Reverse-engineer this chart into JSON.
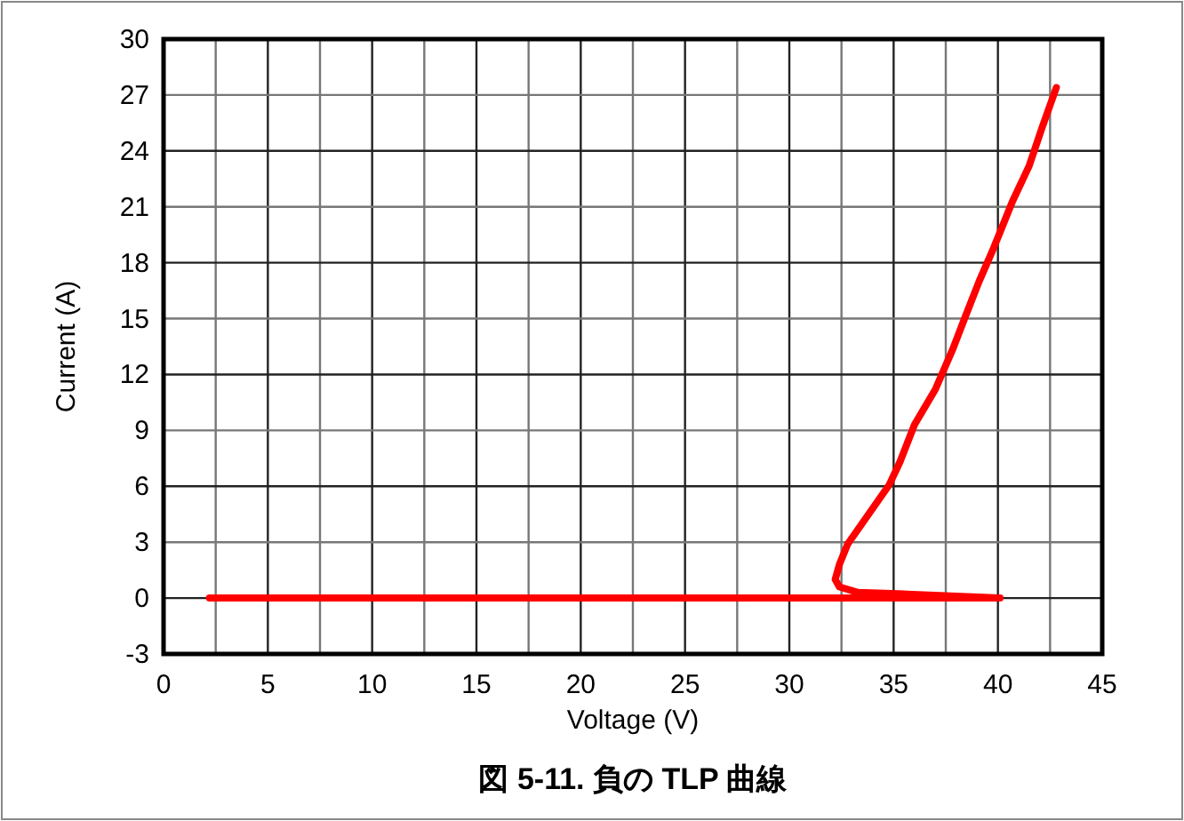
{
  "chart_data": {
    "type": "line",
    "title": "図 5-11. 負の TLP 曲線",
    "xlabel": "Voltage (V)",
    "ylabel": "Current (A)",
    "series": [
      {
        "color": "#ff0000",
        "x": [
          2.2,
          40.1,
          35.9,
          33.3,
          32.4,
          32.2,
          32.4,
          32.8,
          33.8,
          34.8,
          35.3,
          36.0,
          37.0,
          37.85,
          38.4,
          39.1,
          39.8,
          40.7,
          41.5,
          42.1,
          42.8
        ],
        "values": [
          0,
          0,
          0.2,
          0.3,
          0.6,
          1.0,
          1.8,
          2.9,
          4.5,
          6.1,
          7.3,
          9.3,
          11.2,
          13.4,
          15.0,
          17.0,
          18.8,
          21.3,
          23.2,
          25.2,
          27.4
        ]
      }
    ],
    "xlim": [
      0,
      45
    ],
    "ylim": [
      -3,
      30
    ],
    "xticks": [
      0,
      {
        "value": 2.5,
        "label": null
      },
      5,
      {
        "value": 7.5,
        "label": null
      },
      10,
      {
        "value": 12.5,
        "label": null
      },
      15,
      {
        "value": 17.5,
        "label": null
      },
      20,
      {
        "value": 22.5,
        "label": null
      },
      25,
      {
        "value": 27.5,
        "label": null
      },
      30,
      {
        "value": 32.5,
        "label": null
      },
      35,
      {
        "value": 37.5,
        "label": null
      },
      40,
      {
        "value": 42.5,
        "label": null
      },
      45
    ],
    "yticks": [
      -3,
      0,
      3,
      6,
      9,
      12,
      15,
      18,
      21,
      24,
      27,
      30
    ],
    "grid": true,
    "marker": "none",
    "line_style": "solid"
  }
}
